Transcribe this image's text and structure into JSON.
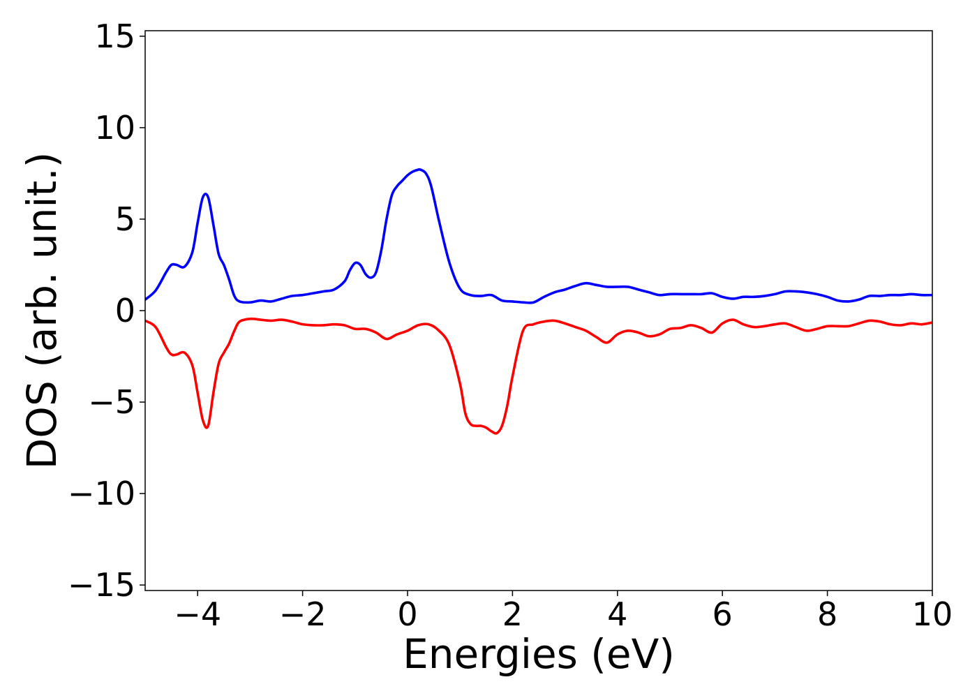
{
  "chart_data": {
    "type": "line",
    "title": "",
    "xlabel": "Energies (eV)",
    "ylabel": "DOS (arb. unit.)",
    "xlim": [
      -5,
      10
    ],
    "ylim": [
      -15.3,
      15.3
    ],
    "xticks": [
      -4,
      -2,
      0,
      2,
      4,
      6,
      8,
      10
    ],
    "xtick_labels": [
      "−4",
      "−2",
      "0",
      "2",
      "4",
      "6",
      "8",
      "10"
    ],
    "yticks": [
      -15,
      -10,
      -5,
      0,
      5,
      10,
      15
    ],
    "ytick_labels": [
      "−15",
      "−10",
      "−5",
      "0",
      "5",
      "10",
      "15"
    ],
    "grid": false,
    "legend": "none",
    "series": [
      {
        "color": "#0000ff",
        "x": [
          -5.0,
          -4.8,
          -4.6,
          -4.5,
          -4.4,
          -4.25,
          -4.1,
          -4.0,
          -3.9,
          -3.8,
          -3.7,
          -3.6,
          -3.5,
          -3.4,
          -3.3,
          -3.2,
          -3.0,
          -2.8,
          -2.6,
          -2.4,
          -2.2,
          -2.0,
          -1.8,
          -1.6,
          -1.4,
          -1.2,
          -1.1,
          -1.0,
          -0.9,
          -0.8,
          -0.7,
          -0.6,
          -0.5,
          -0.4,
          -0.3,
          -0.2,
          -0.1,
          0.0,
          0.1,
          0.2,
          0.25,
          0.35,
          0.45,
          0.6,
          0.8,
          1.0,
          1.2,
          1.4,
          1.6,
          1.8,
          2.0,
          2.2,
          2.4,
          2.6,
          2.8,
          3.0,
          3.2,
          3.4,
          3.6,
          3.8,
          4.0,
          4.2,
          4.4,
          4.6,
          4.8,
          5.0,
          5.2,
          5.4,
          5.6,
          5.8,
          6.0,
          6.2,
          6.4,
          6.6,
          6.8,
          7.0,
          7.2,
          7.4,
          7.6,
          7.8,
          8.0,
          8.2,
          8.4,
          8.6,
          8.8,
          9.0,
          9.2,
          9.4,
          9.6,
          9.8,
          10.0
        ],
        "y": [
          0.6,
          1.1,
          2.1,
          2.5,
          2.5,
          2.4,
          3.2,
          4.8,
          6.2,
          6.2,
          4.7,
          3.1,
          2.5,
          1.7,
          0.8,
          0.5,
          0.45,
          0.55,
          0.5,
          0.65,
          0.8,
          0.85,
          0.95,
          1.05,
          1.15,
          1.6,
          2.2,
          2.6,
          2.5,
          2.0,
          1.8,
          2.1,
          3.3,
          5.0,
          6.3,
          6.8,
          7.1,
          7.4,
          7.6,
          7.7,
          7.7,
          7.5,
          6.8,
          4.9,
          2.6,
          1.2,
          0.85,
          0.8,
          0.85,
          0.55,
          0.5,
          0.45,
          0.45,
          0.75,
          1.0,
          1.15,
          1.35,
          1.5,
          1.4,
          1.3,
          1.3,
          1.3,
          1.15,
          1.0,
          0.85,
          0.9,
          0.9,
          0.9,
          0.9,
          0.95,
          0.75,
          0.65,
          0.75,
          0.75,
          0.8,
          0.9,
          1.05,
          1.05,
          1.0,
          0.9,
          0.75,
          0.55,
          0.5,
          0.6,
          0.8,
          0.8,
          0.85,
          0.85,
          0.9,
          0.85,
          0.85
        ]
      },
      {
        "color": "#ff0000",
        "x": [
          -5.0,
          -4.8,
          -4.6,
          -4.5,
          -4.4,
          -4.25,
          -4.1,
          -4.0,
          -3.9,
          -3.8,
          -3.7,
          -3.6,
          -3.5,
          -3.4,
          -3.3,
          -3.2,
          -3.0,
          -2.8,
          -2.6,
          -2.4,
          -2.2,
          -2.0,
          -1.8,
          -1.6,
          -1.4,
          -1.2,
          -1.0,
          -0.8,
          -0.6,
          -0.4,
          -0.2,
          0.0,
          0.2,
          0.4,
          0.6,
          0.8,
          1.0,
          1.1,
          1.2,
          1.3,
          1.4,
          1.5,
          1.6,
          1.7,
          1.8,
          1.9,
          2.0,
          2.2,
          2.4,
          2.6,
          2.8,
          3.0,
          3.2,
          3.4,
          3.6,
          3.8,
          4.0,
          4.2,
          4.4,
          4.6,
          4.8,
          5.0,
          5.2,
          5.4,
          5.6,
          5.8,
          6.0,
          6.2,
          6.4,
          6.6,
          6.8,
          7.0,
          7.2,
          7.4,
          7.6,
          7.8,
          8.0,
          8.2,
          8.4,
          8.6,
          8.8,
          9.0,
          9.2,
          9.4,
          9.6,
          9.8,
          10.0
        ],
        "y": [
          -0.55,
          -0.9,
          -2.0,
          -2.4,
          -2.4,
          -2.3,
          -3.0,
          -4.5,
          -6.0,
          -6.3,
          -4.5,
          -2.9,
          -2.3,
          -1.8,
          -1.1,
          -0.6,
          -0.45,
          -0.5,
          -0.55,
          -0.5,
          -0.6,
          -0.75,
          -0.8,
          -0.8,
          -0.75,
          -0.8,
          -1.0,
          -1.0,
          -1.2,
          -1.55,
          -1.3,
          -1.1,
          -0.8,
          -0.75,
          -1.1,
          -1.9,
          -4.0,
          -5.6,
          -6.2,
          -6.3,
          -6.3,
          -6.4,
          -6.6,
          -6.7,
          -6.3,
          -5.2,
          -3.6,
          -1.1,
          -0.75,
          -0.6,
          -0.55,
          -0.7,
          -0.9,
          -1.1,
          -1.45,
          -1.75,
          -1.3,
          -1.1,
          -1.2,
          -1.4,
          -1.3,
          -1.0,
          -0.95,
          -0.8,
          -0.95,
          -1.2,
          -0.7,
          -0.5,
          -0.75,
          -0.9,
          -0.85,
          -0.75,
          -0.7,
          -0.9,
          -1.1,
          -1.0,
          -0.85,
          -0.85,
          -0.85,
          -0.7,
          -0.55,
          -0.6,
          -0.75,
          -0.8,
          -0.7,
          -0.75,
          -0.65
        ]
      }
    ]
  }
}
